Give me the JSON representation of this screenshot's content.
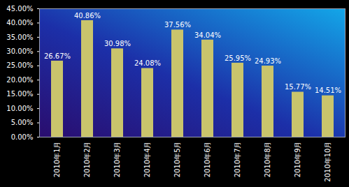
{
  "chart_data": {
    "type": "bar",
    "categories": [
      "2010年1月",
      "2010年2月",
      "2010年3月",
      "2010年4月",
      "2010年5月",
      "2010年6月",
      "2010年7月",
      "2010年8月",
      "2010年9月",
      "2010年10月"
    ],
    "values": [
      26.67,
      40.86,
      30.98,
      24.08,
      37.56,
      34.04,
      25.95,
      24.93,
      15.77,
      14.51
    ],
    "value_labels": [
      "26.67%",
      "40.86%",
      "30.98%",
      "24.08%",
      "37.56%",
      "34.04%",
      "25.95%",
      "24.93%",
      "15.77%",
      "14.51%"
    ],
    "data_labels": true,
    "color": "#c9c46c",
    "ylim": [
      0,
      45
    ],
    "yticks": [
      {
        "value": 0,
        "label": "0.00%"
      },
      {
        "value": 5,
        "label": "5.00%"
      },
      {
        "value": 10,
        "label": "10.00%"
      },
      {
        "value": 15,
        "label": "15.00%"
      },
      {
        "value": 20,
        "label": "20.00%"
      },
      {
        "value": 25,
        "label": "25.00%"
      },
      {
        "value": 30,
        "label": "30.00%"
      },
      {
        "value": 35,
        "label": "35.00%"
      },
      {
        "value": 40,
        "label": "40.00%"
      },
      {
        "value": 45,
        "label": "45.00%"
      }
    ],
    "grid": false
  }
}
